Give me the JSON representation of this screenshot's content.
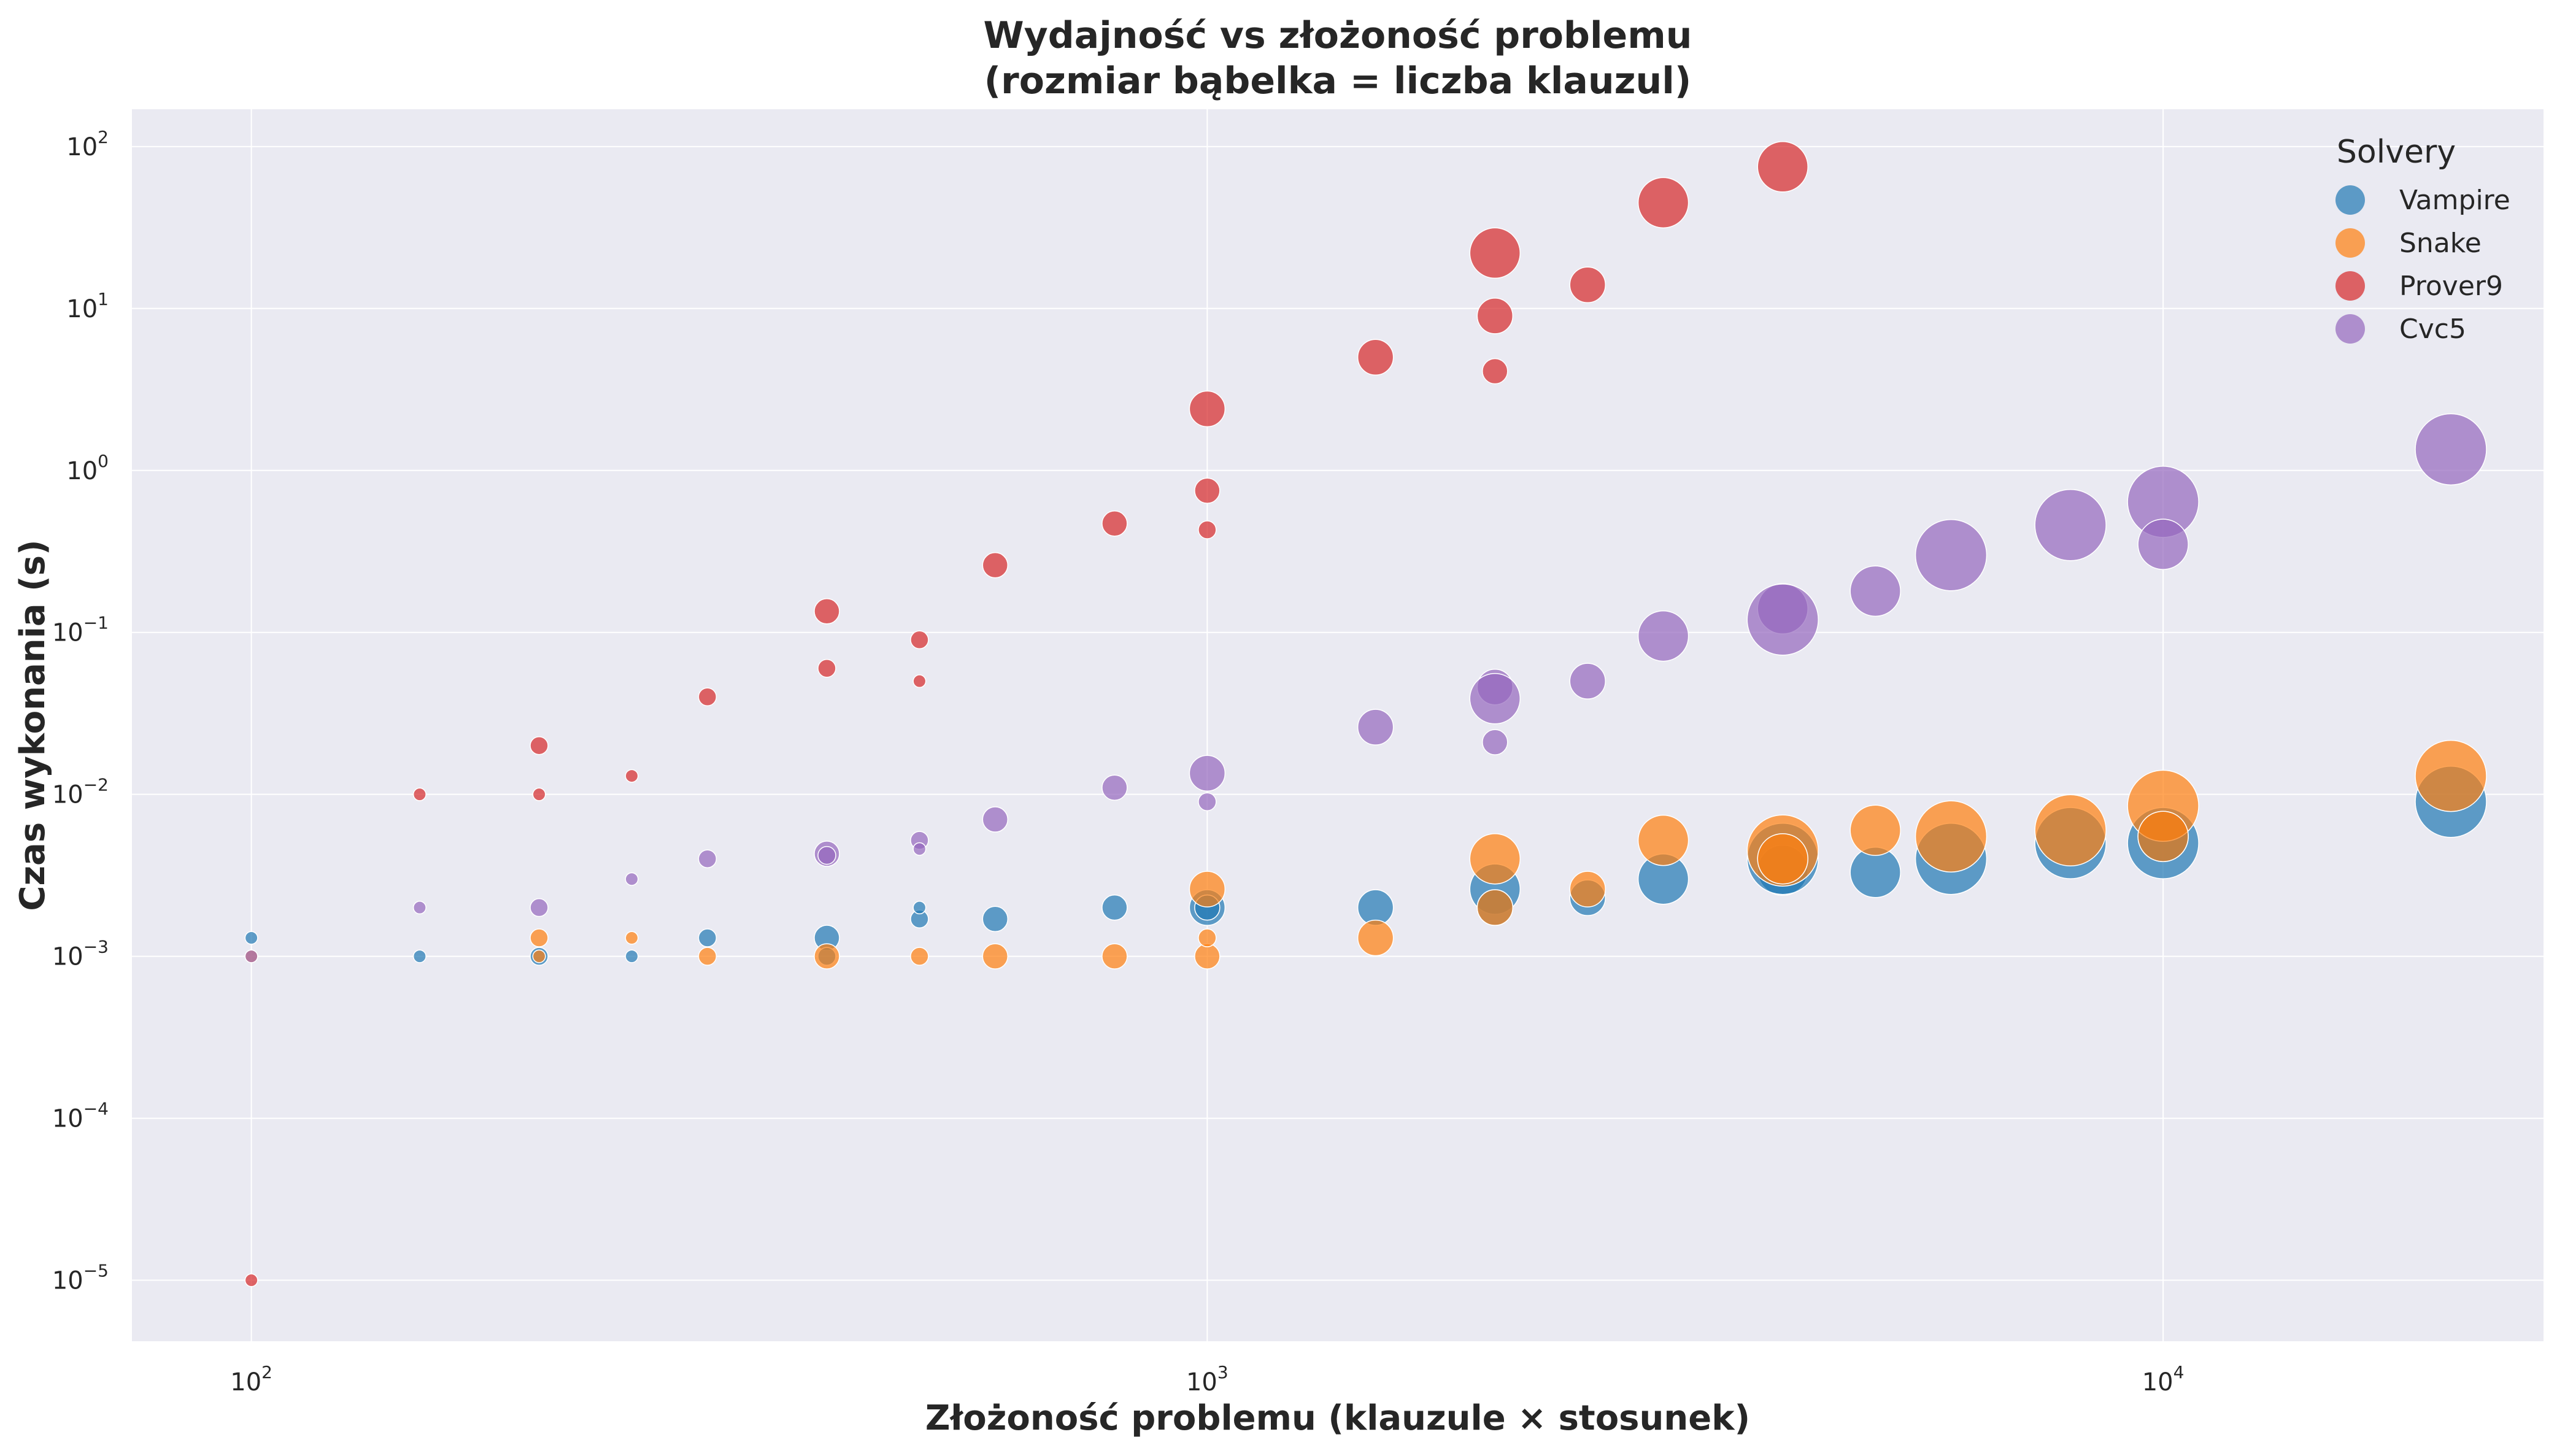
{
  "chart_data": {
    "type": "scatter",
    "title_line1": "Wydajność vs złożoność problemu",
    "title_line2": "(rozmiar bąbelka = liczba klauzul)",
    "xlabel": "Złożoność problemu (klauzule × stosunek)",
    "ylabel": "Czas wykonania (s)",
    "xscale": "log",
    "yscale": "log",
    "xlim": [
      75,
      25000
    ],
    "ylim": [
      4.2e-06,
      170
    ],
    "grid": true,
    "legend_title": "Solvery",
    "legend_position": "top-right",
    "x_ticks": [
      {
        "value": 100,
        "base": "10",
        "exp": "2"
      },
      {
        "value": 1000,
        "base": "10",
        "exp": "3"
      },
      {
        "value": 10000,
        "base": "10",
        "exp": "4"
      }
    ],
    "y_ticks": [
      {
        "value": 1e-05,
        "base": "10",
        "exp": "−5"
      },
      {
        "value": 0.0001,
        "base": "10",
        "exp": "−4"
      },
      {
        "value": 0.001,
        "base": "10",
        "exp": "−3"
      },
      {
        "value": 0.01,
        "base": "10",
        "exp": "−2"
      },
      {
        "value": 0.1,
        "base": "10",
        "exp": "−1"
      },
      {
        "value": 1,
        "base": "10",
        "exp": "0"
      },
      {
        "value": 10,
        "base": "10",
        "exp": "1"
      },
      {
        "value": 100,
        "base": "10",
        "exp": "2"
      }
    ],
    "series": [
      {
        "name": "Vampire",
        "color": "#1f77b4",
        "points": [
          {
            "x": 100,
            "y": 0.0013,
            "s": 25
          },
          {
            "x": 150,
            "y": 0.001,
            "s": 25
          },
          {
            "x": 200,
            "y": 0.001,
            "s": 50
          },
          {
            "x": 250,
            "y": 0.001,
            "s": 25
          },
          {
            "x": 300,
            "y": 0.0013,
            "s": 50
          },
          {
            "x": 400,
            "y": 0.0013,
            "s": 100
          },
          {
            "x": 400,
            "y": 0.001,
            "s": 50
          },
          {
            "x": 500,
            "y": 0.0017,
            "s": 50
          },
          {
            "x": 500,
            "y": 0.002,
            "s": 25
          },
          {
            "x": 600,
            "y": 0.0017,
            "s": 100
          },
          {
            "x": 800,
            "y": 0.002,
            "s": 100
          },
          {
            "x": 1000,
            "y": 0.002,
            "s": 200
          },
          {
            "x": 1000,
            "y": 0.002,
            "s": 100
          },
          {
            "x": 1500,
            "y": 0.002,
            "s": 200
          },
          {
            "x": 2000,
            "y": 0.0026,
            "s": 400
          },
          {
            "x": 2000,
            "y": 0.002,
            "s": 200
          },
          {
            "x": 2500,
            "y": 0.0023,
            "s": 200
          },
          {
            "x": 3000,
            "y": 0.003,
            "s": 400
          },
          {
            "x": 4000,
            "y": 0.0034,
            "s": 400
          },
          {
            "x": 4000,
            "y": 0.004,
            "s": 800
          },
          {
            "x": 5000,
            "y": 0.0033,
            "s": 400
          },
          {
            "x": 6000,
            "y": 0.004,
            "s": 800
          },
          {
            "x": 8000,
            "y": 0.005,
            "s": 800
          },
          {
            "x": 10000,
            "y": 0.005,
            "s": 800
          },
          {
            "x": 10000,
            "y": 0.0055,
            "s": 400
          },
          {
            "x": 20000,
            "y": 0.009,
            "s": 800
          }
        ]
      },
      {
        "name": "Snake",
        "color": "#ff7f0e",
        "points": [
          {
            "x": 100,
            "y": 0.001,
            "s": 25
          },
          {
            "x": 200,
            "y": 0.0013,
            "s": 50
          },
          {
            "x": 200,
            "y": 0.001,
            "s": 25
          },
          {
            "x": 250,
            "y": 0.0013,
            "s": 25
          },
          {
            "x": 300,
            "y": 0.001,
            "s": 50
          },
          {
            "x": 400,
            "y": 0.001,
            "s": 100
          },
          {
            "x": 500,
            "y": 0.001,
            "s": 50
          },
          {
            "x": 600,
            "y": 0.001,
            "s": 100
          },
          {
            "x": 800,
            "y": 0.001,
            "s": 100
          },
          {
            "x": 1000,
            "y": 0.001,
            "s": 100
          },
          {
            "x": 1000,
            "y": 0.0013,
            "s": 50
          },
          {
            "x": 1000,
            "y": 0.0026,
            "s": 200
          },
          {
            "x": 1500,
            "y": 0.0013,
            "s": 200
          },
          {
            "x": 2000,
            "y": 0.004,
            "s": 400
          },
          {
            "x": 2000,
            "y": 0.002,
            "s": 200
          },
          {
            "x": 2500,
            "y": 0.0026,
            "s": 200
          },
          {
            "x": 3000,
            "y": 0.0052,
            "s": 400
          },
          {
            "x": 4000,
            "y": 0.0045,
            "s": 800
          },
          {
            "x": 4000,
            "y": 0.004,
            "s": 400
          },
          {
            "x": 5000,
            "y": 0.006,
            "s": 400
          },
          {
            "x": 6000,
            "y": 0.0055,
            "s": 800
          },
          {
            "x": 8000,
            "y": 0.006,
            "s": 800
          },
          {
            "x": 10000,
            "y": 0.0085,
            "s": 800
          },
          {
            "x": 10000,
            "y": 0.0055,
            "s": 400
          },
          {
            "x": 20000,
            "y": 0.013,
            "s": 800
          }
        ]
      },
      {
        "name": "Prover9",
        "color": "#d62728",
        "points": [
          {
            "x": 100,
            "y": 1e-05,
            "s": 25
          },
          {
            "x": 150,
            "y": 0.01,
            "s": 25
          },
          {
            "x": 200,
            "y": 0.02,
            "s": 50
          },
          {
            "x": 200,
            "y": 0.01,
            "s": 25
          },
          {
            "x": 250,
            "y": 0.013,
            "s": 25
          },
          {
            "x": 300,
            "y": 0.04,
            "s": 50
          },
          {
            "x": 400,
            "y": 0.135,
            "s": 100
          },
          {
            "x": 400,
            "y": 0.06,
            "s": 50
          },
          {
            "x": 500,
            "y": 0.09,
            "s": 50
          },
          {
            "x": 500,
            "y": 0.05,
            "s": 25
          },
          {
            "x": 600,
            "y": 0.26,
            "s": 100
          },
          {
            "x": 800,
            "y": 0.47,
            "s": 100
          },
          {
            "x": 1000,
            "y": 2.4,
            "s": 200
          },
          {
            "x": 1000,
            "y": 0.75,
            "s": 100
          },
          {
            "x": 1000,
            "y": 0.43,
            "s": 50
          },
          {
            "x": 1500,
            "y": 5.0,
            "s": 200
          },
          {
            "x": 2000,
            "y": 22,
            "s": 400
          },
          {
            "x": 2000,
            "y": 9,
            "s": 200
          },
          {
            "x": 2000,
            "y": 4.1,
            "s": 100
          },
          {
            "x": 2500,
            "y": 14,
            "s": 200
          },
          {
            "x": 3000,
            "y": 45,
            "s": 400
          },
          {
            "x": 4000,
            "y": 75,
            "s": 400
          }
        ]
      },
      {
        "name": "Cvc5",
        "color": "#9467bd",
        "points": [
          {
            "x": 100,
            "y": 0.001,
            "s": 25
          },
          {
            "x": 150,
            "y": 0.002,
            "s": 25
          },
          {
            "x": 200,
            "y": 0.002,
            "s": 50
          },
          {
            "x": 250,
            "y": 0.003,
            "s": 25
          },
          {
            "x": 300,
            "y": 0.004,
            "s": 50
          },
          {
            "x": 400,
            "y": 0.0043,
            "s": 100
          },
          {
            "x": 400,
            "y": 0.0042,
            "s": 50
          },
          {
            "x": 500,
            "y": 0.0052,
            "s": 50
          },
          {
            "x": 500,
            "y": 0.0046,
            "s": 25
          },
          {
            "x": 600,
            "y": 0.007,
            "s": 100
          },
          {
            "x": 800,
            "y": 0.011,
            "s": 100
          },
          {
            "x": 1000,
            "y": 0.0135,
            "s": 200
          },
          {
            "x": 1000,
            "y": 0.009,
            "s": 50
          },
          {
            "x": 1500,
            "y": 0.026,
            "s": 200
          },
          {
            "x": 2000,
            "y": 0.046,
            "s": 200
          },
          {
            "x": 2000,
            "y": 0.039,
            "s": 400
          },
          {
            "x": 2000,
            "y": 0.021,
            "s": 100
          },
          {
            "x": 2500,
            "y": 0.05,
            "s": 200
          },
          {
            "x": 3000,
            "y": 0.095,
            "s": 400
          },
          {
            "x": 4000,
            "y": 0.14,
            "s": 400
          },
          {
            "x": 4000,
            "y": 0.12,
            "s": 800
          },
          {
            "x": 5000,
            "y": 0.18,
            "s": 400
          },
          {
            "x": 6000,
            "y": 0.3,
            "s": 800
          },
          {
            "x": 8000,
            "y": 0.46,
            "s": 800
          },
          {
            "x": 10000,
            "y": 0.64,
            "s": 800
          },
          {
            "x": 10000,
            "y": 0.35,
            "s": 400
          },
          {
            "x": 20000,
            "y": 1.35,
            "s": 800
          }
        ]
      }
    ]
  }
}
